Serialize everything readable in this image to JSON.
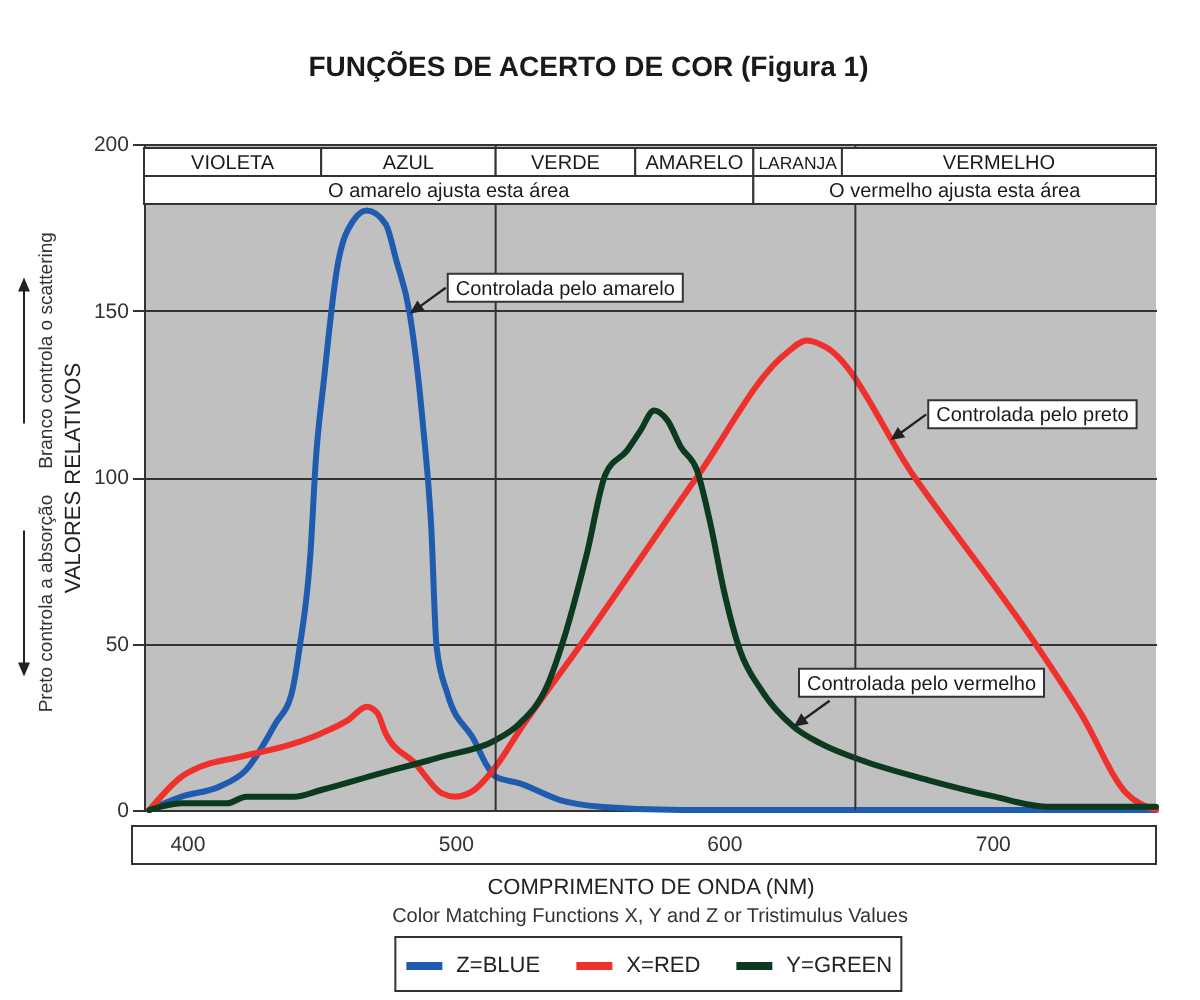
{
  "chart_data": {
    "type": "line",
    "title": "FUNÇÕES DE ACERTO DE COR (Figura 1)",
    "xlabel": "COMPRIMENTO DE ONDA (NM)",
    "ylabel": "VALORES RELATIVOS",
    "annotations": [
      "Color Matching Functions X, Y and Z or Tristimulus Values",
      "Branco controla o scattering",
      "Preto controla a absorção",
      {
        "text": "Controlada pelo amarelo",
        "x": 483,
        "y": 149
      },
      {
        "text": "Controlada pelo preto",
        "x": 662,
        "y": 111
      },
      {
        "text": "Controlada pelo vermelho",
        "x": 626,
        "y": 25
      }
    ],
    "series": [
      {
        "name": "Z=BLUE",
        "color": "#1f5cb0",
        "x": [
          386,
          398,
          412,
          422,
          433,
          439,
          442,
          446,
          448,
          451,
          456,
          462,
          467,
          474,
          478,
          483,
          488,
          491,
          493,
          497,
          507,
          512,
          515,
          524,
          539,
          554,
          584,
          761
        ],
        "values": [
          0,
          4,
          7,
          12,
          26,
          35,
          49,
          77,
          105,
          129,
          163,
          177,
          180,
          176,
          165,
          149,
          115,
          85,
          49,
          35,
          21,
          13,
          10,
          8,
          3,
          1,
          0,
          0
        ]
      },
      {
        "name": "X=RED",
        "color": "#f0302c",
        "x": [
          386,
          398,
          405,
          420,
          440,
          450,
          460,
          467,
          471,
          474,
          485,
          495,
          500,
          507,
          515,
          524,
          547,
          590,
          623,
          631,
          638,
          671,
          716,
          733,
          750,
          761
        ],
        "values": [
          0,
          10,
          13,
          16,
          20,
          23,
          27,
          31,
          29,
          23,
          14,
          5,
          4,
          6,
          13,
          24,
          50,
          100,
          137,
          141,
          139,
          100,
          50,
          29,
          5,
          0
        ]
      },
      {
        "name": "Y=GREEN",
        "color": "#0b3a1e",
        "x": [
          386,
          398,
          415,
          422,
          440,
          450,
          472,
          495,
          515,
          524,
          534,
          541,
          549,
          556,
          564,
          569,
          574,
          579,
          584,
          590,
          595,
          600,
          606,
          614,
          626,
          636,
          651,
          676,
          701,
          720,
          761
        ],
        "values": [
          0,
          2,
          2,
          4,
          4,
          6,
          11,
          16,
          21,
          26,
          37,
          53,
          77,
          101,
          108,
          114,
          120,
          117,
          109,
          102,
          86,
          66,
          48,
          36,
          25,
          20,
          15,
          9,
          4,
          1,
          1
        ]
      }
    ],
    "xlim": [
      384,
      761
    ],
    "xticks": [
      400,
      500,
      600,
      700
    ],
    "ylim": [
      0,
      200
    ],
    "yticks": [
      0,
      50,
      100,
      150,
      200
    ],
    "grid": "y",
    "legend": "bottom",
    "ref_lines": [
      {
        "axis": "x",
        "value": 515,
        "color": "#333333"
      },
      {
        "axis": "x",
        "value": 649,
        "color": "#333333"
      }
    ],
    "bands": [
      {
        "axis": "x",
        "from": 384,
        "to": 450,
        "label": "VIOLETA",
        "color": "#ffffff"
      },
      {
        "axis": "x",
        "from": 450,
        "to": 515,
        "label": "AZUL",
        "color": "#ffffff"
      },
      {
        "axis": "x",
        "from": 515,
        "to": 567,
        "label": "VERDE",
        "color": "#ffffff"
      },
      {
        "axis": "x",
        "from": 567,
        "to": 611,
        "label": "AMARELO",
        "color": "#ffffff"
      },
      {
        "axis": "x",
        "from": 611,
        "to": 644,
        "label": "LARANJA",
        "color": "#ffffff"
      },
      {
        "axis": "x",
        "from": 644,
        "to": 761,
        "label": "VERMELHO",
        "color": "#ffffff"
      },
      {
        "axis": "x",
        "from": 384,
        "to": 611,
        "label": "O amarelo ajusta esta área",
        "color": "#ffffff"
      },
      {
        "axis": "x",
        "from": 611,
        "to": 761,
        "label": "O vermelho ajusta esta área",
        "color": "#ffffff"
      }
    ]
  }
}
